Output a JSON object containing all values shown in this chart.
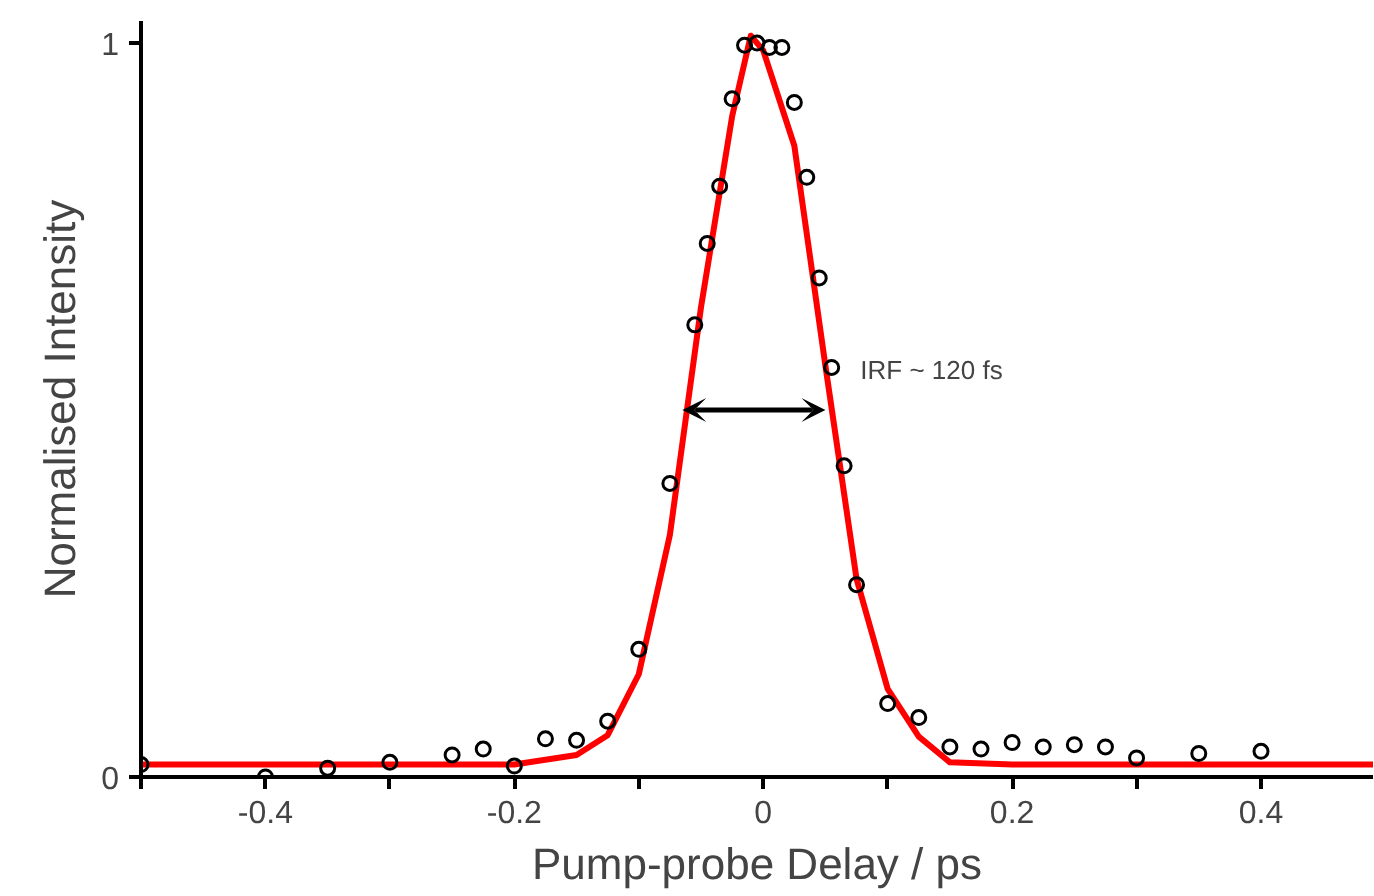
{
  "chart_data": {
    "type": "scatter",
    "xlabel": "Pump-probe Delay / ps",
    "ylabel": "Normalised Intensity",
    "xlim": [
      -0.5,
      0.49
    ],
    "ylim": [
      0,
      1.03
    ],
    "xticks": [
      {
        "value": -0.5,
        "label": null
      },
      -0.4,
      {
        "value": -0.3,
        "label": null
      },
      -0.2,
      {
        "value": -0.1,
        "label": null
      },
      0,
      {
        "value": 0.1,
        "label": null
      },
      0.2,
      {
        "value": 0.3,
        "label": null
      },
      0.4
    ],
    "yticks": [
      0,
      1
    ],
    "grid": false,
    "marker": "circle",
    "annotations": [
      {
        "text": "IRF ~ 120 fs",
        "x": 0.05,
        "y": 0.5
      }
    ],
    "series": [
      {
        "color": "#000000",
        "x": [
          -0.5,
          -0.4,
          -0.35,
          -0.3,
          -0.25,
          -0.225,
          -0.2,
          -0.175,
          -0.15,
          -0.125,
          -0.1,
          -0.075,
          -0.055,
          -0.045,
          -0.035,
          -0.025,
          -0.015,
          -0.005,
          0.005,
          0.015,
          0.025,
          0.035,
          0.045,
          0.055,
          0.065,
          0.075,
          0.1,
          0.125,
          0.15,
          0.175,
          0.2,
          0.225,
          0.25,
          0.275,
          0.3,
          0.35,
          0.4
        ],
        "values": [
          0.017,
          0.0,
          0.012,
          0.02,
          0.03,
          0.038,
          0.015,
          0.052,
          0.05,
          0.076,
          0.174,
          0.4,
          0.616,
          0.727,
          0.805,
          0.924,
          0.997,
          1.0,
          0.994,
          0.994,
          0.919,
          0.817,
          0.68,
          0.558,
          0.424,
          0.262,
          0.1,
          0.081,
          0.041,
          0.038,
          0.047,
          0.041,
          0.044,
          0.041,
          0.026,
          0.032,
          0.035
        ]
      },
      {
        "type": "line",
        "color": "#ff0000",
        "line_style": "solid",
        "marker": "none",
        "x": [
          -0.5,
          -0.2,
          -0.15,
          -0.125,
          -0.1,
          -0.075,
          -0.05,
          -0.025,
          -0.01,
          0.0,
          0.025,
          0.05,
          0.075,
          0.1,
          0.125,
          0.15,
          0.2,
          0.49
        ],
        "values": [
          0.017,
          0.017,
          0.03,
          0.057,
          0.14,
          0.33,
          0.64,
          0.9,
          1.01,
          0.99,
          0.86,
          0.56,
          0.27,
          0.12,
          0.055,
          0.02,
          0.017,
          0.017
        ]
      }
    ]
  }
}
